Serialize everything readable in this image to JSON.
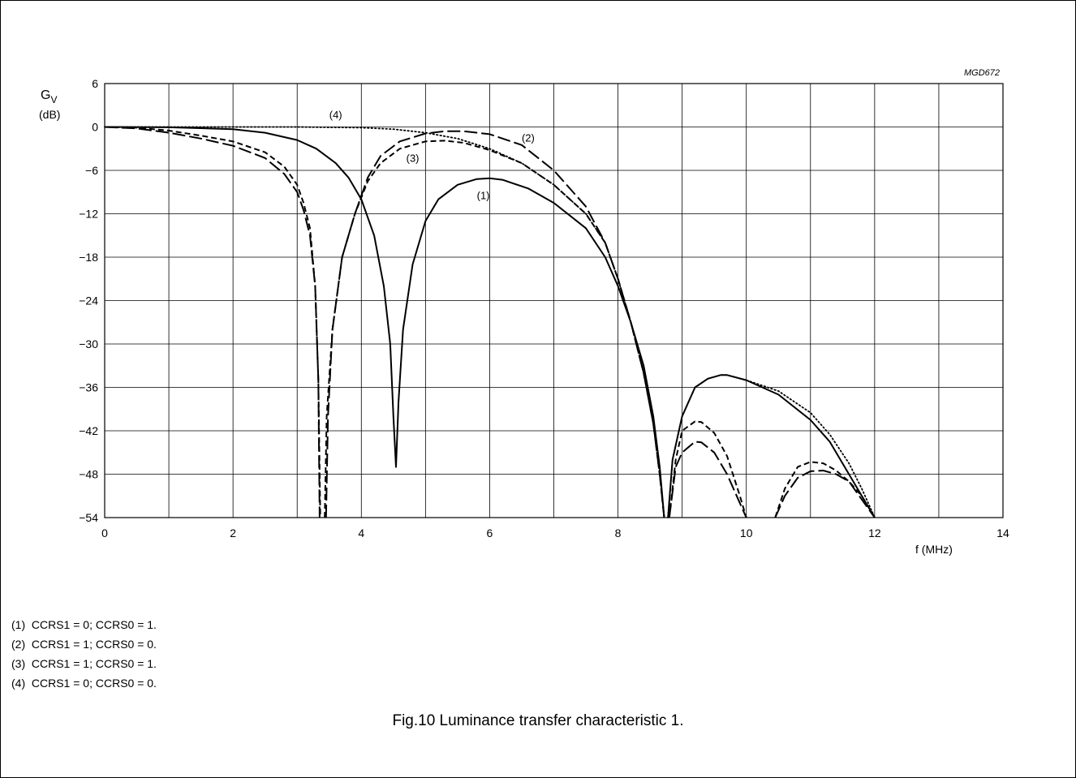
{
  "figure_code": "MGD672",
  "caption": "Fig.10  Luminance transfer characteristic 1.",
  "legend": [
    "(1)  CCRS1 = 0; CCRS0 = 1.",
    "(2)  CCRS1 = 1; CCRS0 = 0.",
    "(3)  CCRS1 = 1; CCRS0 = 1.",
    "(4)  CCRS1 = 0; CCRS0 = 0."
  ],
  "chart_data": {
    "type": "line",
    "ylabel": "G",
    "ylabel_subscript": "V",
    "yunit": "(dB)",
    "xlabel": "f  (MHz)",
    "xlim": [
      0,
      14
    ],
    "ylim": [
      -54,
      6
    ],
    "xticks": [
      0,
      2,
      4,
      6,
      8,
      10,
      12,
      14
    ],
    "yticks": [
      6,
      0,
      -6,
      -12,
      -18,
      -24,
      -30,
      -36,
      -42,
      -48,
      -54
    ],
    "xgrid_step": 1,
    "ygrid_step": 6,
    "grid": true,
    "series": [
      {
        "name": "(1)",
        "style": "solid",
        "label_at": [
          5.8,
          -10
        ],
        "segments": [
          [
            [
              0,
              0
            ],
            [
              1,
              -0.05
            ],
            [
              2,
              -0.3
            ],
            [
              2.5,
              -0.8
            ],
            [
              3,
              -1.8
            ],
            [
              3.3,
              -3
            ],
            [
              3.6,
              -5
            ],
            [
              3.8,
              -7
            ],
            [
              4,
              -10
            ],
            [
              4.2,
              -15
            ],
            [
              4.35,
              -22
            ],
            [
              4.45,
              -30
            ],
            [
              4.5,
              -40
            ],
            [
              4.54,
              -47
            ],
            [
              4.58,
              -38
            ],
            [
              4.65,
              -28
            ],
            [
              4.8,
              -19
            ],
            [
              5,
              -13
            ],
            [
              5.2,
              -10
            ],
            [
              5.5,
              -8
            ],
            [
              5.8,
              -7.2
            ],
            [
              6,
              -7.1
            ],
            [
              6.2,
              -7.3
            ],
            [
              6.6,
              -8.5
            ],
            [
              7,
              -10.5
            ],
            [
              7.5,
              -14
            ],
            [
              7.8,
              -18
            ],
            [
              8,
              -22
            ],
            [
              8.2,
              -27
            ],
            [
              8.4,
              -33
            ],
            [
              8.55,
              -40
            ],
            [
              8.65,
              -47
            ],
            [
              8.72,
              -54
            ]
          ],
          [
            [
              8.78,
              -54
            ],
            [
              8.85,
              -46
            ],
            [
              9,
              -40
            ],
            [
              9.2,
              -36
            ],
            [
              9.4,
              -34.8
            ],
            [
              9.6,
              -34.3
            ],
            [
              9.7,
              -34.3
            ],
            [
              10,
              -35
            ],
            [
              10.5,
              -37
            ],
            [
              11,
              -40.5
            ],
            [
              11.3,
              -43.5
            ],
            [
              11.6,
              -48
            ],
            [
              11.8,
              -51
            ],
            [
              12,
              -54
            ]
          ]
        ]
      },
      {
        "name": "(2)",
        "style": "longdash",
        "label_at": [
          6.5,
          -2
        ],
        "segments": [
          [
            [
              0,
              0
            ],
            [
              0.5,
              -0.2
            ],
            [
              1,
              -0.8
            ],
            [
              1.5,
              -1.6
            ],
            [
              2,
              -2.6
            ],
            [
              2.5,
              -4.3
            ],
            [
              2.8,
              -6.5
            ],
            [
              3,
              -9
            ],
            [
              3.1,
              -11.5
            ],
            [
              3.2,
              -15
            ],
            [
              3.28,
              -22
            ],
            [
              3.33,
              -35
            ],
            [
              3.35,
              -54
            ]
          ],
          [
            [
              3.45,
              -54
            ],
            [
              3.48,
              -40
            ],
            [
              3.55,
              -28
            ],
            [
              3.7,
              -18
            ],
            [
              3.9,
              -12
            ],
            [
              4.1,
              -7
            ],
            [
              4.3,
              -4
            ],
            [
              4.6,
              -2
            ],
            [
              5,
              -0.9
            ],
            [
              5.3,
              -0.6
            ],
            [
              5.6,
              -0.6
            ],
            [
              6,
              -1
            ],
            [
              6.5,
              -2.5
            ],
            [
              7,
              -6
            ],
            [
              7.5,
              -11
            ],
            [
              7.8,
              -16
            ],
            [
              8,
              -21
            ],
            [
              8.2,
              -27
            ],
            [
              8.4,
              -34
            ],
            [
              8.55,
              -41
            ],
            [
              8.65,
              -48
            ],
            [
              8.72,
              -54
            ]
          ],
          [
            [
              8.8,
              -54
            ],
            [
              8.9,
              -47
            ],
            [
              9,
              -45
            ],
            [
              9.2,
              -43.5
            ],
            [
              9.3,
              -43.6
            ],
            [
              9.5,
              -45
            ],
            [
              9.7,
              -48
            ],
            [
              9.9,
              -52
            ],
            [
              10,
              -54
            ]
          ],
          [
            [
              10.45,
              -54
            ],
            [
              10.6,
              -51
            ],
            [
              10.8,
              -48.5
            ],
            [
              11,
              -47.6
            ],
            [
              11.2,
              -47.5
            ],
            [
              11.4,
              -48
            ],
            [
              11.6,
              -49
            ],
            [
              11.8,
              -51.5
            ],
            [
              12,
              -54
            ]
          ]
        ]
      },
      {
        "name": "(3)",
        "style": "shortdash",
        "label_at": [
          4.7,
          -4.8
        ],
        "segments": [
          [
            [
              0,
              0
            ],
            [
              0.5,
              -0.1
            ],
            [
              1,
              -0.5
            ],
            [
              1.5,
              -1.2
            ],
            [
              2,
              -2
            ],
            [
              2.5,
              -3.5
            ],
            [
              2.8,
              -5.5
            ],
            [
              3,
              -8
            ],
            [
              3.1,
              -10.5
            ],
            [
              3.2,
              -14
            ],
            [
              3.28,
              -22
            ],
            [
              3.33,
              -35
            ],
            [
              3.36,
              -54
            ]
          ],
          [
            [
              3.43,
              -54
            ],
            [
              3.46,
              -40
            ],
            [
              3.55,
              -28
            ],
            [
              3.7,
              -18
            ],
            [
              3.9,
              -12
            ],
            [
              4.1,
              -7.5
            ],
            [
              4.3,
              -5
            ],
            [
              4.6,
              -3
            ],
            [
              5,
              -2
            ],
            [
              5.3,
              -1.9
            ],
            [
              5.6,
              -2.2
            ],
            [
              6,
              -3.2
            ],
            [
              6.5,
              -5
            ],
            [
              7,
              -8
            ],
            [
              7.5,
              -12
            ],
            [
              7.8,
              -16
            ],
            [
              8,
              -21
            ],
            [
              8.2,
              -27
            ],
            [
              8.4,
              -34
            ],
            [
              8.55,
              -41
            ],
            [
              8.65,
              -48
            ],
            [
              8.72,
              -54
            ]
          ],
          [
            [
              8.8,
              -54
            ],
            [
              8.9,
              -46
            ],
            [
              9,
              -42
            ],
            [
              9.2,
              -40.7
            ],
            [
              9.3,
              -40.8
            ],
            [
              9.5,
              -42.3
            ],
            [
              9.7,
              -45.5
            ],
            [
              9.9,
              -51
            ],
            [
              10,
              -54
            ]
          ],
          [
            [
              10.45,
              -54
            ],
            [
              10.6,
              -50
            ],
            [
              10.8,
              -47
            ],
            [
              11,
              -46.3
            ],
            [
              11.2,
              -46.5
            ],
            [
              11.4,
              -47.5
            ],
            [
              11.6,
              -49
            ],
            [
              11.8,
              -51
            ],
            [
              12,
              -54
            ]
          ]
        ]
      },
      {
        "name": "(4)",
        "style": "dotted",
        "label_at": [
          3.5,
          1.2
        ],
        "segments": [
          [
            [
              0,
              0
            ],
            [
              1,
              0
            ],
            [
              2,
              0
            ],
            [
              3,
              0
            ],
            [
              4,
              -0.1
            ],
            [
              4.5,
              -0.3
            ],
            [
              5,
              -0.8
            ],
            [
              5.5,
              -1.6
            ],
            [
              6,
              -3
            ],
            [
              6.5,
              -5
            ],
            [
              7,
              -8
            ],
            [
              7.5,
              -12
            ],
            [
              7.8,
              -16
            ],
            [
              8,
              -21
            ],
            [
              8.2,
              -27
            ],
            [
              8.4,
              -34
            ],
            [
              8.55,
              -41
            ],
            [
              8.65,
              -48
            ],
            [
              8.72,
              -54
            ]
          ],
          [
            [
              8.78,
              -54
            ],
            [
              8.85,
              -46
            ],
            [
              9,
              -40
            ],
            [
              9.2,
              -36
            ],
            [
              9.4,
              -34.8
            ],
            [
              9.6,
              -34.3
            ],
            [
              9.7,
              -34.3
            ],
            [
              10,
              -35
            ],
            [
              10.5,
              -36.5
            ],
            [
              11,
              -39.5
            ],
            [
              11.3,
              -42.5
            ],
            [
              11.6,
              -46.5
            ],
            [
              11.8,
              -50
            ],
            [
              12,
              -54
            ]
          ]
        ]
      }
    ]
  }
}
